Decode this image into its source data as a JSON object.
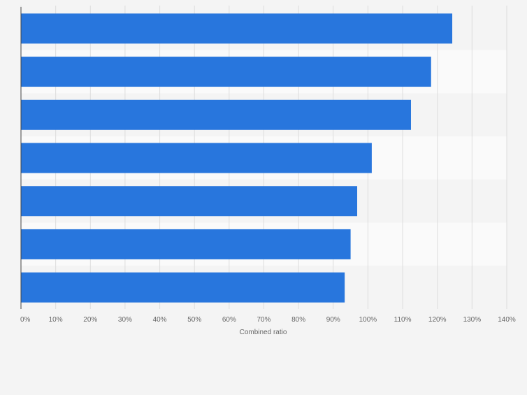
{
  "chart_data": {
    "type": "bar",
    "orientation": "horizontal",
    "title": "",
    "xlabel": "Combined ratio",
    "ylabel": "",
    "categories": [
      "",
      "",
      "",
      "",
      "",
      "",
      ""
    ],
    "values": [
      124.3,
      118.2,
      112.4,
      101.1,
      96.9,
      95.0,
      93.3
    ],
    "xlim": [
      0,
      140
    ],
    "ticks": [
      0,
      10,
      20,
      30,
      40,
      50,
      60,
      70,
      80,
      90,
      100,
      110,
      120,
      130,
      140
    ],
    "tick_labels": [
      "0%",
      "10%",
      "20%",
      "30%",
      "40%",
      "50%",
      "60%",
      "70%",
      "80%",
      "90%",
      "100%",
      "110%",
      "120%",
      "130%",
      "140%"
    ],
    "grid": true,
    "colors": {
      "bar": "#2876dd",
      "band_light": "#fafafa",
      "band_dark": "#f4f4f4",
      "grid": "#dddddd",
      "axis": "#444444",
      "tick_text": "#666666"
    }
  }
}
